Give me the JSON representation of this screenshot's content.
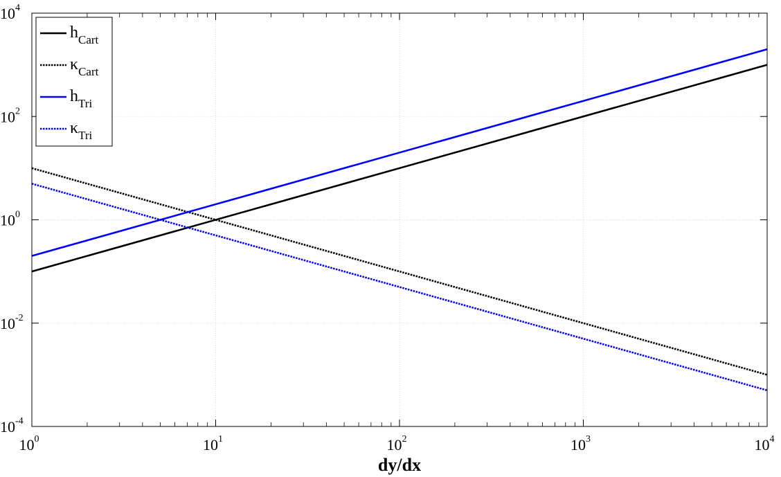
{
  "chart_data": {
    "type": "line",
    "xlabel": "dy/dx",
    "ylabel": "",
    "xscale": "log",
    "yscale": "log",
    "xlim": [
      1,
      10000
    ],
    "ylim": [
      0.0001,
      10000
    ],
    "grid": true,
    "legend_position": "top-left",
    "x_ticks": [
      {
        "base": "10",
        "exp": "0"
      },
      {
        "base": "10",
        "exp": "1"
      },
      {
        "base": "10",
        "exp": "2"
      },
      {
        "base": "10",
        "exp": "3"
      },
      {
        "base": "10",
        "exp": "4"
      }
    ],
    "y_ticks": [
      {
        "base": "10",
        "exp": "-4"
      },
      {
        "base": "10",
        "exp": "-2"
      },
      {
        "base": "10",
        "exp": "0"
      },
      {
        "base": "10",
        "exp": "2"
      },
      {
        "base": "10",
        "exp": "4"
      }
    ],
    "series": [
      {
        "name_main": "h",
        "name_sub": "Cart",
        "color": "#000000",
        "dash": "solid",
        "x": [
          1,
          10000
        ],
        "y": [
          0.1,
          1000
        ]
      },
      {
        "name_main": "κ",
        "name_sub": "Cart",
        "color": "#000000",
        "dash": "dotted",
        "x": [
          1,
          10000
        ],
        "y": [
          10,
          0.001
        ]
      },
      {
        "name_main": "h",
        "name_sub": "Tri",
        "color": "#0000ff",
        "dash": "solid",
        "x": [
          1,
          10000
        ],
        "y": [
          0.2,
          2000
        ]
      },
      {
        "name_main": "κ",
        "name_sub": "Tri",
        "color": "#0000ff",
        "dash": "dotted",
        "x": [
          1,
          10000
        ],
        "y": [
          5,
          0.0005
        ]
      }
    ]
  }
}
